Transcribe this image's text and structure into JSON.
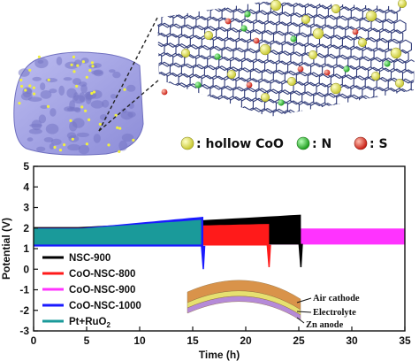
{
  "illustration": {
    "legend": [
      {
        "label": ": hollow CoO",
        "color": "#d9d94a"
      },
      {
        "label": ": N",
        "color": "#33c233"
      },
      {
        "label": ": S",
        "color": "#e03b2c"
      }
    ],
    "graphene_color": "#2f3a78",
    "particle_color": "#a8a8e8"
  },
  "battery": {
    "layers": [
      {
        "label": "Air cathode",
        "color": "#d9934a"
      },
      {
        "label": "Electrolyte",
        "color": "#e6e070"
      },
      {
        "label": "Zn anode",
        "color": "#b58ad8"
      }
    ]
  },
  "chart_data": {
    "type": "line",
    "title": "",
    "xlabel": "Time (h)",
    "ylabel": "Potential (V)",
    "xlim": [
      0,
      35
    ],
    "ylim": [
      -3,
      5
    ],
    "xticks": [
      0,
      5,
      10,
      15,
      20,
      25,
      30,
      35
    ],
    "yticks": [
      -3,
      -2,
      -1,
      0,
      1,
      2,
      3,
      4,
      5
    ],
    "legend_position": "left",
    "series": [
      {
        "name": "NSC-900",
        "color": "#000000",
        "end_h": 25.2,
        "charge_start": 2.05,
        "charge_end": 2.65,
        "discharge": 1.2,
        "drop_to": 0.1
      },
      {
        "name": "CoO-NSC-800",
        "color": "#ff1a1a",
        "end_h": 22.2,
        "charge_start": 2.0,
        "charge_end": 2.2,
        "discharge": 1.15,
        "drop_to": 0.1
      },
      {
        "name": "CoO-NSC-900",
        "color": "#ff33ff",
        "end_h": 35,
        "charge_start": 1.98,
        "charge_end": 1.98,
        "discharge": 1.2,
        "drop_to": null
      },
      {
        "name": "CoO-NSC-1000",
        "color": "#1a1aff",
        "end_h": 16.0,
        "charge_start": 2.0,
        "charge_end": 2.55,
        "discharge": 1.1,
        "drop_to": 0.0
      },
      {
        "name": "Pt+RuO",
        "subscript": "2",
        "color": "#1a9a9a",
        "end_h": 15.8,
        "charge_start": 1.98,
        "charge_end": 2.4,
        "discharge": 1.2,
        "drop_to": null
      }
    ]
  }
}
